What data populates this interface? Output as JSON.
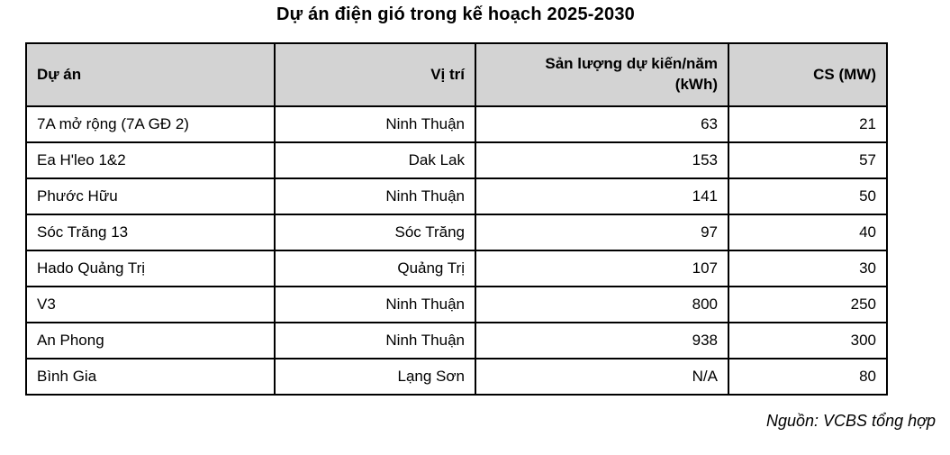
{
  "title": "Dự án điện gió trong kế hoạch 2025-2030",
  "table": {
    "columns": [
      {
        "label": "Dự án"
      },
      {
        "label": "Vị trí"
      },
      {
        "label": "Sản lượng dự kiến/năm\n(kWh)"
      },
      {
        "label": "CS (MW)"
      }
    ],
    "rows": [
      {
        "project": "7A mở rộng (7A GĐ 2)",
        "location": "Ninh Thuận",
        "output": "63",
        "capacity": "21"
      },
      {
        "project": "Ea H'leo 1&2",
        "location": "Dak Lak",
        "output": "153",
        "capacity": "57"
      },
      {
        "project": "Phước Hữu",
        "location": "Ninh Thuận",
        "output": "141",
        "capacity": "50"
      },
      {
        "project": "Sóc Trăng 13",
        "location": "Sóc Trăng",
        "output": "97",
        "capacity": "40"
      },
      {
        "project": "Hado Quảng Trị",
        "location": "Quảng Trị",
        "output": "107",
        "capacity": "30"
      },
      {
        "project": "V3",
        "location": "Ninh Thuận",
        "output": "800",
        "capacity": "250"
      },
      {
        "project": "An Phong",
        "location": "Ninh Thuận",
        "output": "938",
        "capacity": "300"
      },
      {
        "project": "Bình Gia",
        "location": "Lạng Sơn",
        "output": "N/A",
        "capacity": "80"
      }
    ]
  },
  "source_note": "Nguồn: VCBS tổng hợp",
  "colors": {
    "header_bg": "#d3d3d3",
    "border": "#000000",
    "text": "#000000",
    "background": "#ffffff"
  }
}
